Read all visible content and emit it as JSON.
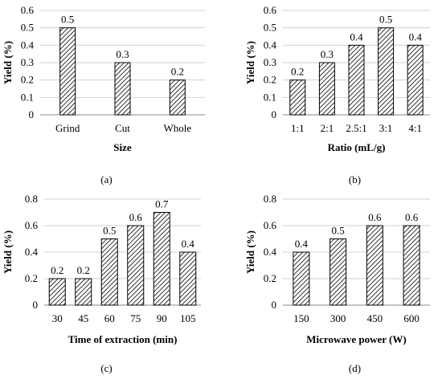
{
  "chart_data": [
    {
      "type": "bar",
      "panel_label": "(a)",
      "categories": [
        "Grind",
        "Cut",
        "Whole"
      ],
      "values": [
        0.5,
        0.3,
        0.2
      ],
      "data_labels": [
        "0.5",
        "0.3",
        "0.2"
      ],
      "xlabel": "Size",
      "ylabel": "Yield (%)",
      "ylim": [
        0,
        0.6
      ],
      "yticks": [
        "0",
        "0.1",
        "0.2",
        "0.3",
        "0.4",
        "0.5",
        "0.6"
      ],
      "grid": true,
      "bar_pattern": "diagonal-hatch"
    },
    {
      "type": "bar",
      "panel_label": "(b)",
      "categories": [
        "1:1",
        "2:1",
        "2.5:1",
        "3:1",
        "4:1"
      ],
      "values": [
        0.2,
        0.3,
        0.4,
        0.5,
        0.4
      ],
      "data_labels": [
        "0.2",
        "0.3",
        "0.4",
        "0.5",
        "0.4"
      ],
      "xlabel": "Ratio (mL/g)",
      "ylabel": "Yield (%)",
      "ylim": [
        0,
        0.6
      ],
      "yticks": [
        "0",
        "0.1",
        "0.2",
        "0.3",
        "0.4",
        "0.5",
        "0.6"
      ],
      "grid": true,
      "bar_pattern": "diagonal-hatch"
    },
    {
      "type": "bar",
      "panel_label": "(c)",
      "categories": [
        "30",
        "45",
        "60",
        "75",
        "90",
        "105"
      ],
      "values": [
        0.2,
        0.2,
        0.5,
        0.6,
        0.7,
        0.4
      ],
      "data_labels": [
        "0.2",
        "0.2",
        "0.5",
        "0.6",
        "0.7",
        "0.4"
      ],
      "xlabel": "Time of extraction (min)",
      "ylabel": "Yield (%)",
      "ylim": [
        0,
        0.8
      ],
      "yticks": [
        "0",
        "0.2",
        "0.4",
        "0.6",
        "0.8"
      ],
      "grid": true,
      "bar_pattern": "diagonal-hatch"
    },
    {
      "type": "bar",
      "panel_label": "(d)",
      "categories": [
        "150",
        "300",
        "450",
        "600"
      ],
      "values": [
        0.4,
        0.5,
        0.6,
        0.6
      ],
      "data_labels": [
        "0.4",
        "0.5",
        "0.6",
        "0.6"
      ],
      "xlabel": "Microwave power (W)",
      "ylabel": "Yield (%)",
      "ylim": [
        0,
        0.8
      ],
      "yticks": [
        "0",
        "0.2",
        "0.4",
        "0.6",
        "0.8"
      ],
      "grid": true,
      "bar_pattern": "diagonal-hatch"
    }
  ]
}
